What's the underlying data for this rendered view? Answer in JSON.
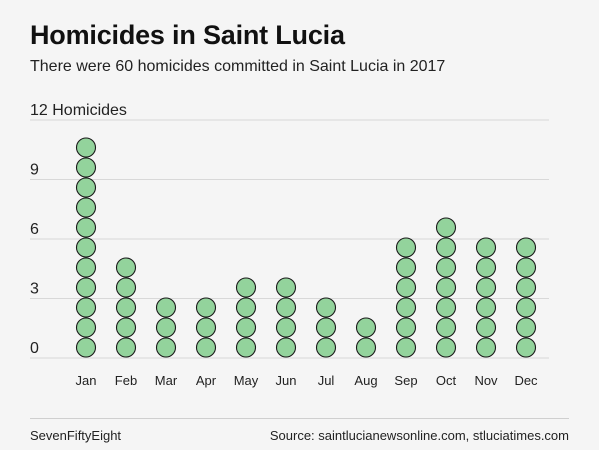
{
  "header": {
    "title": "Homicides in Saint Lucia",
    "subtitle": "There were 60 homicides committed in Saint Lucia in 2017"
  },
  "footer": {
    "credit": "SevenFiftyEight",
    "source": "Source: saintlucianewsonline.com, stluciatimes.com"
  },
  "colors": {
    "dot_fill": "#93d39c",
    "dot_stroke": "#1a1a1a",
    "grid": "#d8d8d8"
  },
  "chart_data": {
    "type": "bar",
    "style": "dot-stack",
    "title": "Homicides in Saint Lucia",
    "ylabel": "Homicides",
    "yticks": [
      0,
      3,
      6,
      9,
      12
    ],
    "ytick_labels": [
      "0",
      "3",
      "6",
      "9",
      "12 Homicides"
    ],
    "ylim": [
      0,
      12
    ],
    "grid": true,
    "categories": [
      "Jan",
      "Feb",
      "Mar",
      "Apr",
      "May",
      "Jun",
      "Jul",
      "Aug",
      "Sep",
      "Oct",
      "Nov",
      "Dec"
    ],
    "values": [
      11,
      5,
      3,
      3,
      4,
      4,
      3,
      2,
      6,
      7,
      6,
      6
    ]
  }
}
